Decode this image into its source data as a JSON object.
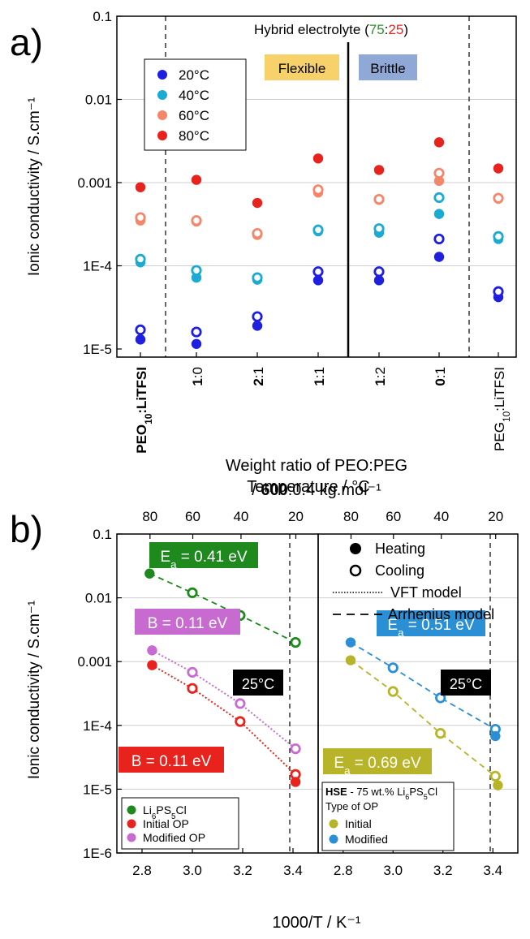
{
  "panel_a": {
    "letter": "a)",
    "header_prefix": "Hybrid electrolyte (",
    "header_num1": "75",
    "header_colon": ":",
    "header_num2": "25",
    "header_suffix": ")",
    "header_num1_color": "#2e8b2e",
    "header_num2_color": "#e8231e",
    "flexible_label": "Flexible",
    "brittle_label": "Brittle",
    "flexible_bg": "#f7d26a",
    "brittle_bg": "#8fa8d6",
    "ylabel": "Ionic conductivity / S.cm⁻¹",
    "xlabel_line1": "Weight ratio of PEO:PEG",
    "xlabel_line2_prefix": "/ ",
    "xlabel_line2_bold": "600",
    "xlabel_line2_suffix": ":0.4 kg.mol⁻¹"
  },
  "panel_b": {
    "letter": "b)",
    "top_axis_label": "Temperature / °C",
    "xlabel": "1000/T / K⁻¹",
    "ylabel": "Ionic conductivity / S.cm⁻¹",
    "ea_green": "Ea = 0.41 eV",
    "b_purple": "B = 0.11 eV",
    "b_red": "B = 0.11 eV",
    "ea_blue": "Ea = 0.51 eV",
    "ea_olive": "Ea = 0.69 eV",
    "temp_label": "25°C",
    "legend_marker": {
      "heating": "Heating",
      "cooling": "Cooling",
      "vft": "VFT model",
      "arrhenius": "Arrhenius model"
    },
    "legend_left": [
      "Li6PS5Cl",
      "Initial OP",
      "Modified OP"
    ],
    "legend_right_title_bold": "HSE",
    "legend_right_title_rest": " - 75 wt.% Li6PS5Cl",
    "legend_right_subtitle": "Type of OP",
    "legend_right": [
      "Initial",
      "Modified"
    ]
  },
  "colors": {
    "c20": "#1f1fe0",
    "c40": "#1aaad4",
    "c60": "#f4876a",
    "c80": "#e8231e",
    "green": "#1e8a1e",
    "red": "#e8231e",
    "purple": "#c86bd0",
    "olive": "#b8b42a",
    "blue": "#2a8fd4"
  },
  "chart_data": [
    {
      "type": "scatter",
      "panel": "a",
      "yscale": "log",
      "ylim": [
        1e-05,
        0.1
      ],
      "y_ticks": [
        "1E-5",
        "1E-4",
        "0.001",
        "0.01",
        "0.1"
      ],
      "categories": [
        "PEO10:LiTFSI",
        "1:0",
        "2:1",
        "1:1",
        "1:2",
        "0:1",
        "PEG10:LiTFSI"
      ],
      "legend": [
        "20°C",
        "40°C",
        "60°C",
        "80°C"
      ],
      "series": [
        {
          "name": "20°C",
          "heating": [
            1.3e-05,
            1.15e-05,
            1.9e-05,
            6.7e-05,
            6.7e-05,
            0.000128,
            4.2e-05
          ],
          "cooling": [
            1.7e-05,
            1.6e-05,
            2.45e-05,
            8.5e-05,
            8.5e-05,
            0.00021,
            4.9e-05
          ]
        },
        {
          "name": "40°C",
          "heating": [
            0.00011,
            7.2e-05,
            6.8e-05,
            0.00026,
            0.00025,
            0.00042,
            0.00021
          ],
          "cooling": [
            0.00012,
            8.8e-05,
            7.2e-05,
            0.00027,
            0.00028,
            0.00066,
            0.000225
          ]
        },
        {
          "name": "60°C",
          "heating": [
            0.00035,
            0.00034,
            0.000235,
            0.00076,
            0.00062,
            0.00105,
            0.00064
          ],
          "cooling": [
            0.00038,
            0.00035,
            0.000245,
            0.00082,
            0.00063,
            0.0013,
            0.00065
          ]
        },
        {
          "name": "80°C",
          "heating": [
            0.00088,
            0.00108,
            0.00057,
            0.00195,
            0.00142,
            0.00305,
            0.00148
          ]
        }
      ]
    },
    {
      "type": "scatter",
      "panel": "b-left",
      "yscale": "log",
      "ylim": [
        1e-06,
        0.1
      ],
      "xlim": [
        2.7,
        3.5
      ],
      "x_ticks": [
        "2.8",
        "3.0",
        "3.2",
        "3.4"
      ],
      "y_ticks": [
        "1E-6",
        "1E-5",
        "1E-4",
        "0.001",
        "0.01",
        "0.1"
      ],
      "top_ticks": [
        "80",
        "60",
        "40",
        "20"
      ],
      "series": [
        {
          "name": "Li6PS5Cl",
          "x": [
            2.83,
            3.0,
            3.19,
            3.41
          ],
          "y": [
            0.024,
            0.012,
            0.0053,
            0.002
          ],
          "fit": "Arrhenius"
        },
        {
          "name": "Initial OP",
          "x": [
            2.84,
            3.0,
            3.19,
            3.41,
            3.41
          ],
          "y": [
            0.00088,
            0.00038,
            0.000115,
            1.7e-05,
            1.3e-05
          ],
          "fit": "VFT"
        },
        {
          "name": "Modified OP",
          "x": [
            2.84,
            3.0,
            3.19,
            3.41
          ],
          "y": [
            0.0015,
            0.00068,
            0.00022,
            4.3e-05
          ],
          "fit": "VFT"
        }
      ]
    },
    {
      "type": "scatter",
      "panel": "b-right",
      "yscale": "log",
      "ylim": [
        1e-06,
        0.1
      ],
      "xlim": [
        2.7,
        3.5
      ],
      "x_ticks": [
        "2.8",
        "3.0",
        "3.2",
        "3.4"
      ],
      "top_ticks": [
        "80",
        "60",
        "40",
        "20"
      ],
      "series": [
        {
          "name": "Initial",
          "x": [
            2.83,
            3.0,
            3.19,
            3.41,
            3.42
          ],
          "y": [
            0.00105,
            0.00034,
            7.5e-05,
            1.6e-05,
            1.15e-05
          ],
          "fit": "Arrhenius"
        },
        {
          "name": "Modified",
          "x": [
            2.83,
            3.0,
            3.19,
            3.41,
            3.41
          ],
          "y": [
            0.002,
            0.0008,
            0.00027,
            8.7e-05,
            6.8e-05
          ],
          "fit": "Arrhenius"
        }
      ]
    }
  ]
}
